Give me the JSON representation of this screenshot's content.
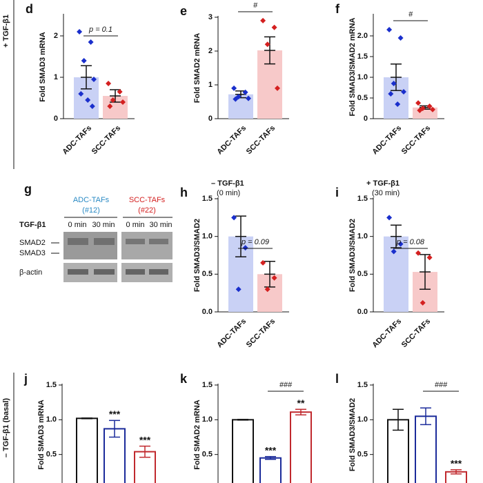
{
  "side_labels": [
    "+ TGF-β1",
    "– TGF-β1 (basal)"
  ],
  "blot": {
    "panel": "g",
    "groups": [
      {
        "name": "ADC-TAFs",
        "id": "(#12)"
      },
      {
        "name": "SCC-TAFs",
        "id": "(#22)"
      }
    ],
    "treatment": "TGF-β1",
    "times": [
      "0 min",
      "30 min",
      "0 min",
      "30 min"
    ],
    "bands": [
      "SMAD2",
      "SMAD3",
      "β-actin"
    ]
  },
  "chart_data": [
    {
      "type": "dotbar",
      "panel": "d",
      "ylabel": "Fold SMAD3 mRNA",
      "categories": [
        "ADC-TAFs",
        "SCC-TAFs"
      ],
      "values": [
        1.0,
        0.55
      ],
      "errors": [
        0.28,
        0.15
      ],
      "points": [
        [
          2.1,
          1.85,
          1.4,
          0.95,
          0.6,
          0.45,
          0.3
        ],
        [
          0.85,
          0.65,
          0.45,
          0.4,
          0.3
        ]
      ],
      "colors": [
        "#1a2fcc",
        "#d42020"
      ],
      "fills": [
        "#c9d1f5",
        "#f7c9c9"
      ],
      "ylim": [
        0,
        2.5
      ],
      "yticks": [
        0,
        1,
        2
      ],
      "bracket": "p = 0.1"
    },
    {
      "type": "dotbar",
      "panel": "e",
      "ylabel": "Fold SMAD2 mRNA",
      "categories": [
        "ADC-TAFs",
        "SCC-TAFs"
      ],
      "values": [
        0.72,
        2.02
      ],
      "errors": [
        0.1,
        0.4
      ],
      "points": [
        [
          0.9,
          0.78,
          0.65,
          0.6,
          0.58
        ],
        [
          2.9,
          2.7,
          2.2,
          0.9
        ]
      ],
      "colors": [
        "#1a2fcc",
        "#d42020"
      ],
      "fills": [
        "#c9d1f5",
        "#f7c9c9"
      ],
      "ylim": [
        0,
        3
      ],
      "yticks": [
        0,
        1,
        2,
        3
      ],
      "bracket": "#"
    },
    {
      "type": "dotbar",
      "panel": "f",
      "ylabel": "Fold SMAD3/SMAD2 mRNA",
      "categories": [
        "ADC-TAFs",
        "SCC-TAFs"
      ],
      "values": [
        1.0,
        0.27
      ],
      "errors": [
        0.32,
        0.04
      ],
      "points": [
        [
          2.15,
          1.95,
          0.85,
          0.65,
          0.6,
          0.35
        ],
        [
          0.38,
          0.3,
          0.25,
          0.22,
          0.2
        ]
      ],
      "colors": [
        "#1a2fcc",
        "#d42020"
      ],
      "fills": [
        "#c9d1f5",
        "#f7c9c9"
      ],
      "ylim": [
        0,
        2.5
      ],
      "yticks": [
        0,
        {
          "value": 0.5,
          "label": "0.5"
        },
        {
          "value": 1,
          "label": "1.0"
        },
        {
          "value": 1.5,
          "label": "1.5"
        },
        {
          "value": 2,
          "label": "2.0"
        }
      ],
      "bracket": "#"
    },
    {
      "type": "dotbar",
      "panel": "h",
      "title": "– TGF-β1",
      "subtitle": "(0 min)",
      "ylabel": "Fold SMAD3/SMAD2",
      "categories": [
        "ADC-TAFs",
        "SCC-TAFs"
      ],
      "values": [
        1.0,
        0.5
      ],
      "errors": [
        0.27,
        0.17
      ],
      "points": [
        [
          1.25,
          0.85,
          0.3
        ],
        [
          0.65,
          0.45,
          0.3
        ]
      ],
      "colors": [
        "#1a2fcc",
        "#d42020"
      ],
      "fills": [
        "#c9d1f5",
        "#f7c9c9"
      ],
      "ylim": [
        0,
        1.5
      ],
      "yticks": [
        {
          "value": 0,
          "label": "0.0"
        },
        {
          "value": 0.5,
          "label": "0.5"
        },
        {
          "value": 1,
          "label": "1.0"
        },
        {
          "value": 1.5,
          "label": "1.5"
        }
      ],
      "bracket": "p = 0.09"
    },
    {
      "type": "dotbar",
      "panel": "i",
      "title": "+ TGF-β1",
      "subtitle": "(30 min)",
      "ylabel": "Fold SMAD3/SMAD2",
      "categories": [
        "ADC-TAFs",
        "SCC-TAFs"
      ],
      "values": [
        1.0,
        0.53
      ],
      "errors": [
        0.15,
        0.23
      ],
      "points": [
        [
          1.25,
          0.9,
          0.8
        ],
        [
          0.78,
          0.72,
          0.12
        ]
      ],
      "colors": [
        "#1a2fcc",
        "#d42020"
      ],
      "fills": [
        "#c9d1f5",
        "#f7c9c9"
      ],
      "ylim": [
        0,
        1.5
      ],
      "yticks": [
        {
          "value": 0,
          "label": "0.0"
        },
        {
          "value": 0.5,
          "label": "0.5"
        },
        {
          "value": 1,
          "label": "1.0"
        },
        {
          "value": 1.5,
          "label": "1.5"
        }
      ],
      "bracket": "p = 0.08"
    },
    {
      "type": "openbar",
      "panel": "j",
      "ylabel": "Fold SMAD3 mRNA",
      "categories": [
        null,
        null,
        null
      ],
      "values": [
        1.02,
        0.87,
        0.54
      ],
      "errors": [
        0.005,
        0.12,
        0.08
      ],
      "stars": [
        null,
        "***",
        "***"
      ],
      "colors": [
        "#111111",
        "#1a2a9a",
        "#c0282d"
      ],
      "ylim": [
        0,
        1.5
      ],
      "yticks": [
        {
          "value": 0.5,
          "label": "0.5"
        },
        {
          "value": 1,
          "label": "1.0"
        },
        {
          "value": 1.5,
          "label": "1.5"
        }
      ]
    },
    {
      "type": "openbar",
      "panel": "k",
      "ylabel": "Fold SMAD2 mRNA",
      "categories": [
        null,
        null,
        null
      ],
      "values": [
        1.0,
        0.45,
        1.11
      ],
      "errors": [
        0.005,
        0.02,
        0.04
      ],
      "stars": [
        null,
        "***",
        "**"
      ],
      "colors": [
        "#111111",
        "#1a2a9a",
        "#c0282d"
      ],
      "ylim": [
        0,
        1.5
      ],
      "yticks": [
        {
          "value": 0.5,
          "label": "0.5"
        },
        {
          "value": 1,
          "label": "1.0"
        },
        {
          "value": 1.5,
          "label": "1.5"
        }
      ],
      "bracket": "###"
    },
    {
      "type": "openbar",
      "panel": "l",
      "ylabel": "Fold SMAD3/SMAD2",
      "categories": [
        null,
        null,
        null
      ],
      "values": [
        1.0,
        1.05,
        0.25
      ],
      "errors": [
        0.15,
        0.12,
        0.03
      ],
      "stars": [
        null,
        null,
        "***"
      ],
      "colors": [
        "#111111",
        "#1a2a9a",
        "#c0282d"
      ],
      "ylim": [
        0,
        1.5
      ],
      "yticks": [
        {
          "value": 0.5,
          "label": "0.5"
        },
        {
          "value": 1,
          "label": "1.0"
        },
        {
          "value": 1.5,
          "label": "1.5"
        }
      ],
      "bracket": "###"
    }
  ]
}
